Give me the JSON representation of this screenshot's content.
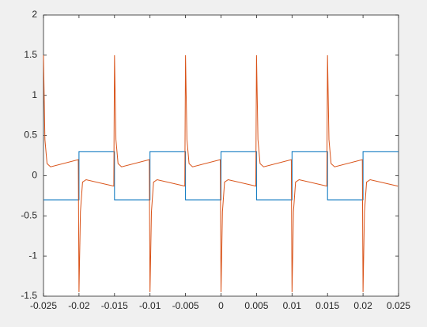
{
  "chart_data": {
    "type": "line",
    "xlim": [
      -0.025,
      0.025
    ],
    "xticks": [
      -0.025,
      -0.02,
      -0.015,
      -0.01,
      -0.005,
      0,
      0.005,
      0.01,
      0.015,
      0.02,
      0.025
    ],
    "ylim": [
      -1.5,
      2
    ],
    "yticks": [
      -1.5,
      -1,
      -0.5,
      0,
      0.5,
      1,
      1.5,
      2
    ],
    "grid": false,
    "series": [
      {
        "color": "#0072bd",
        "x": [
          -0.025,
          -0.02,
          -0.02,
          -0.015,
          -0.015,
          -0.01,
          -0.01,
          -0.005,
          -0.005,
          0,
          0,
          0.005,
          0.005,
          0.01,
          0.01,
          0.015,
          0.015,
          0.02,
          0.02,
          0.025
        ],
        "values": [
          -0.3,
          -0.3,
          0.3,
          0.3,
          -0.3,
          -0.3,
          0.3,
          0.3,
          -0.3,
          -0.3,
          0.3,
          0.3,
          -0.3,
          -0.3,
          0.3,
          0.3,
          -0.3,
          -0.3,
          0.3,
          0.3
        ]
      },
      {
        "color": "#d95319",
        "x": [
          -0.025,
          -0.0248,
          -0.0245,
          -0.024,
          -0.0201,
          -0.02,
          -0.0198,
          -0.0195,
          -0.019,
          -0.0151,
          -0.015,
          -0.0148,
          -0.0145,
          -0.014,
          -0.0101,
          -0.01,
          -0.0098,
          -0.0095,
          -0.009,
          -0.0051,
          -0.005,
          -0.0048,
          -0.0045,
          -0.004,
          -0.0001,
          0,
          0.0002,
          0.0005,
          0.001,
          0.0049,
          0.005,
          0.0052,
          0.0055,
          0.006,
          0.0099,
          0.01,
          0.0102,
          0.0105,
          0.011,
          0.0149,
          0.015,
          0.0152,
          0.0155,
          0.016,
          0.0199,
          0.02,
          0.0202,
          0.0205,
          0.021,
          0.0249
        ],
        "values": [
          1.5,
          0.45,
          0.15,
          0.11,
          0.2,
          -1.45,
          -0.45,
          -0.08,
          -0.05,
          -0.13,
          1.5,
          0.45,
          0.15,
          0.11,
          0.2,
          -1.45,
          -0.45,
          -0.08,
          -0.05,
          -0.13,
          1.5,
          0.45,
          0.15,
          0.11,
          0.2,
          -1.45,
          -0.45,
          -0.08,
          -0.05,
          -0.13,
          1.5,
          0.45,
          0.15,
          0.11,
          0.2,
          -1.45,
          -0.45,
          -0.08,
          -0.05,
          -0.13,
          1.5,
          0.45,
          0.15,
          0.11,
          0.2,
          -1.45,
          -0.45,
          -0.08,
          -0.05,
          -0.13
        ]
      }
    ]
  }
}
